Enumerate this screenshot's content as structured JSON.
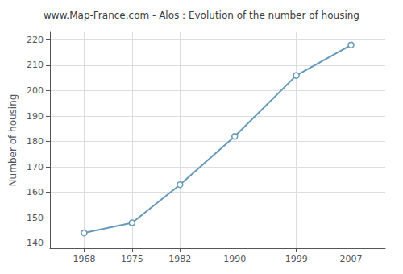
{
  "chart_data": {
    "type": "line",
    "title": "www.Map-France.com - Alos : Evolution of the number of housing",
    "x": [
      1968,
      1975,
      1982,
      1990,
      1999,
      2007
    ],
    "values": [
      144,
      148,
      163,
      182,
      206,
      218
    ],
    "ylabel": "Number of housing",
    "xlim": [
      1963,
      2012
    ],
    "ylim": [
      138,
      223
    ],
    "xticks": [
      1968,
      1975,
      1982,
      1990,
      1999,
      2007
    ],
    "yticks": [
      140,
      150,
      160,
      170,
      180,
      190,
      200,
      210,
      220
    ],
    "grid": true,
    "color": "#6699bb",
    "marker": "circle"
  }
}
